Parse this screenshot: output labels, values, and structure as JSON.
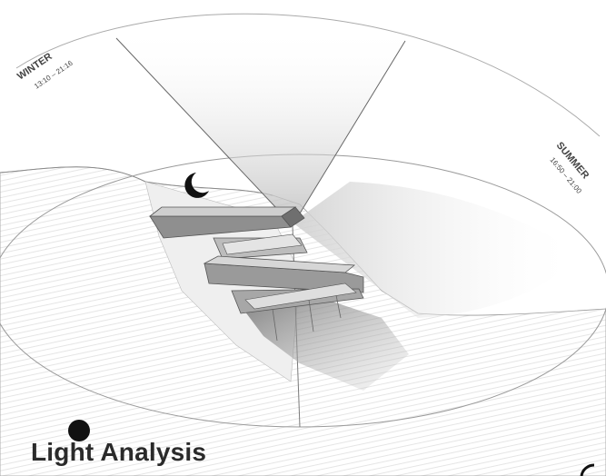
{
  "title": "Light Analysis",
  "winter": {
    "label": "WINTER",
    "time": "13:10 – 21:16"
  },
  "summer": {
    "label": "SUMMER",
    "time": "16:50 – 21:00"
  },
  "icons": {
    "moon": "crescent-moon-icon",
    "sun": "filled-circle-icon"
  },
  "colors": {
    "ink": "#2a2a2a",
    "line": "#555555",
    "fill_dark": "#8a8a8a",
    "fill_light": "#e6e6e6"
  }
}
